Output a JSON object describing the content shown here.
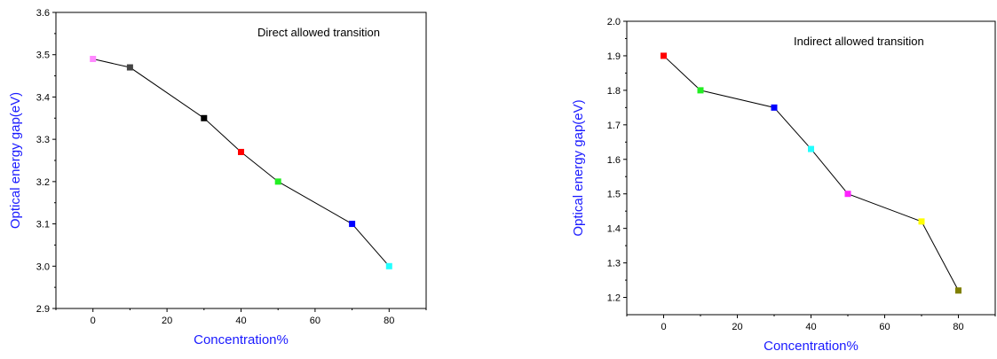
{
  "colors": {
    "axis_title": "#1a1aff",
    "line": "#000000",
    "frame": "#000000"
  },
  "chart_data": [
    {
      "type": "line",
      "annotation": "Direct allowed transition",
      "xlabel": "Concentration%",
      "ylabel": "Optical energy gap(eV)",
      "xlim": [
        -10,
        90
      ],
      "ylim": [
        2.9,
        3.6
      ],
      "xticks": [
        0,
        20,
        40,
        60,
        80
      ],
      "yticks": [
        2.9,
        3.0,
        3.1,
        3.2,
        3.3,
        3.4,
        3.5,
        3.6
      ],
      "ytick_decimals": 1,
      "grid": false,
      "series": [
        {
          "x": [
            0,
            10,
            30,
            40,
            50,
            70,
            80
          ],
          "y": [
            3.49,
            3.47,
            3.35,
            3.27,
            3.2,
            3.1,
            3.0
          ],
          "marker_colors": [
            "#ff88ff",
            "#444444",
            "#000000",
            "#ff0000",
            "#22ee22",
            "#0000ff",
            "#22ffff"
          ]
        }
      ]
    },
    {
      "type": "line",
      "annotation": "Indirect allowed transition",
      "xlabel": "Concentration%",
      "ylabel": "Optical energy gap(eV)",
      "xlim": [
        -10,
        90
      ],
      "ylim": [
        1.15,
        2.0
      ],
      "xticks": [
        0,
        20,
        40,
        60,
        80
      ],
      "yticks": [
        1.2,
        1.3,
        1.4,
        1.5,
        1.6,
        1.7,
        1.8,
        1.9,
        2.0
      ],
      "ytick_decimals": 1,
      "grid": false,
      "series": [
        {
          "x": [
            0,
            10,
            30,
            40,
            50,
            70,
            80
          ],
          "y": [
            1.9,
            1.8,
            1.75,
            1.63,
            1.5,
            1.42,
            1.22
          ],
          "marker_colors": [
            "#ff0000",
            "#22ee22",
            "#0000ff",
            "#22ffff",
            "#ff22ff",
            "#ffff00",
            "#808000"
          ]
        }
      ]
    }
  ]
}
